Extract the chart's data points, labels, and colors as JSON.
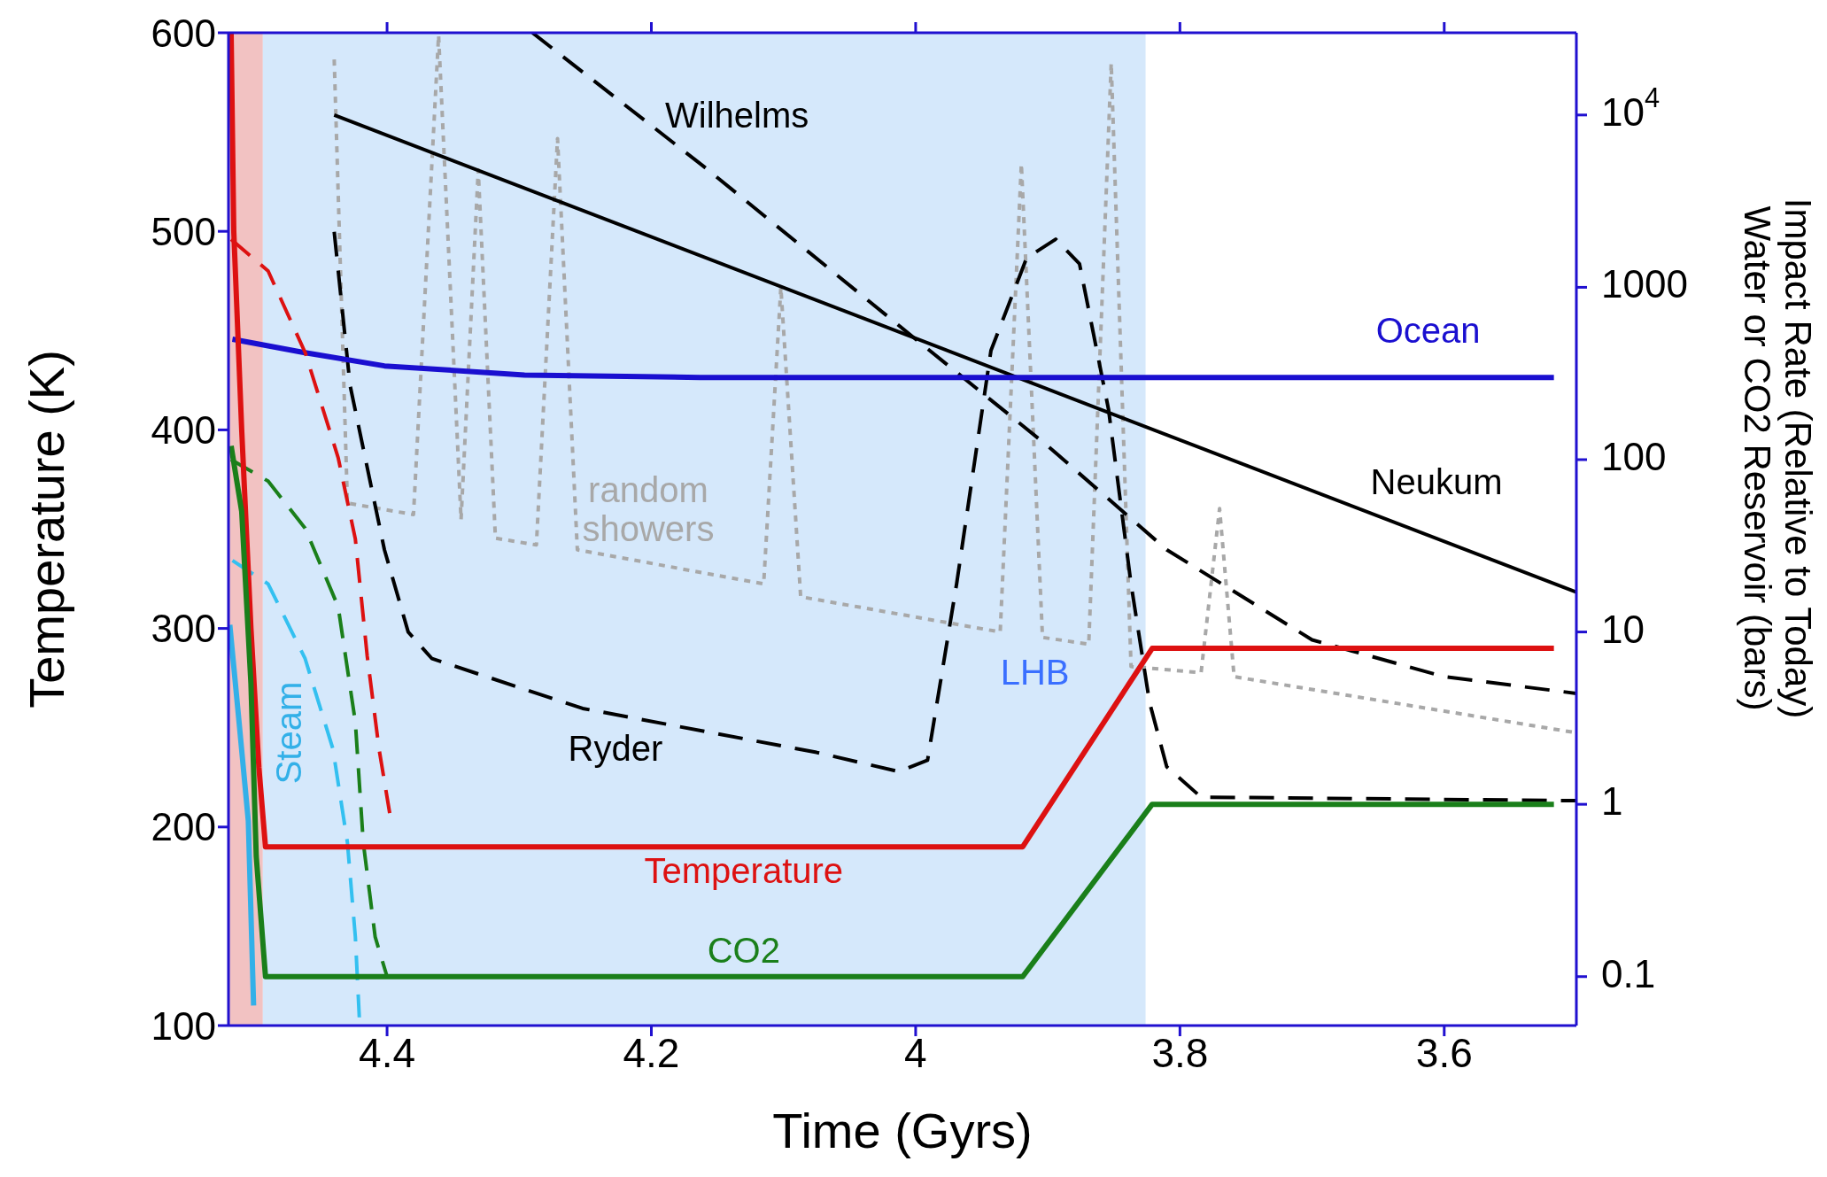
{
  "chart_data": {
    "type": "line",
    "xlabel": "Time (Gyrs)",
    "ylabel": "Temperature (K)",
    "y2label": "Impact Rate (Relative to Today)\nWater or CO2 Reservoir (bars)",
    "xlim": [
      4.52,
      3.5
    ],
    "xticks": [
      4.4,
      4.2,
      4,
      3.8,
      3.6
    ],
    "ylim": [
      100,
      600
    ],
    "yticks": [
      100,
      200,
      300,
      400,
      500,
      600
    ],
    "y2lim": [
      0.052,
      30000
    ],
    "y2ticks": [
      0.1,
      1,
      10,
      100,
      1000,
      {
        "value": 10000,
        "label": "10$^{4}$"
      }
    ],
    "log": "y2",
    "bands": [
      {
        "axis": "x",
        "from": 4.52,
        "to": 4.494,
        "label": null,
        "color": "#f2c2c2"
      },
      {
        "axis": "x",
        "from": 4.494,
        "to": 3.826,
        "label": "LHB",
        "color": "#d5e8fb"
      }
    ],
    "series": [
      {
        "name": "random showers",
        "axis": "y2",
        "color": "#a8a8a8",
        "line_style": "dotted",
        "x": [
          4.44,
          4.43,
          4.38,
          4.361,
          4.344,
          4.331,
          4.318,
          4.287,
          4.271,
          4.256,
          4.115,
          4.102,
          4.087,
          3.936,
          3.92,
          3.904,
          3.869,
          3.852,
          3.837,
          3.784,
          3.77,
          3.759,
          3.5
        ],
        "values": [
          21000,
          56,
          48,
          29000,
          45,
          4800,
          35,
          32,
          7300,
          30,
          19,
          1000,
          16,
          10,
          5200,
          9.3,
          8.5,
          20000,
          6.3,
          5.8,
          52,
          5.5,
          2.6
        ]
      },
      {
        "name": "Neukum",
        "axis": "y2",
        "color": "#000000",
        "line_style": "solid",
        "x": [
          4.44,
          3.5
        ],
        "values": [
          10000,
          17
        ]
      },
      {
        "name": "Wilhelms",
        "axis": "y2",
        "color": "#000000",
        "line_style": "dashed",
        "x": [
          4.29,
          4.16,
          4.0,
          3.9,
          3.81,
          3.7,
          3.6,
          3.5
        ],
        "values": [
          30000,
          5000,
          500,
          120,
          30,
          9,
          5.5,
          4.4
        ]
      },
      {
        "name": "Ryder",
        "axis": "y2",
        "color": "#000000",
        "line_style": "dashed",
        "x": [
          4.44,
          4.428,
          4.402,
          4.384,
          4.366,
          4.252,
          4.075,
          4.013,
          3.991,
          3.969,
          3.943,
          3.916,
          3.894,
          3.876,
          3.854,
          3.837,
          3.823,
          3.81,
          3.784,
          3.5
        ],
        "values": [
          2100,
          270,
          30,
          10,
          7,
          3.6,
          2,
          1.55,
          1.8,
          19,
          430,
          1480,
          1900,
          1370,
          195,
          19,
          3.9,
          1.65,
          1.1,
          1.05
        ]
      },
      {
        "name": "Ocean",
        "axis": "y2",
        "color": "#1a0fd0",
        "line_style": "solid",
        "x": [
          4.517,
          4.464,
          4.402,
          4.296,
          4.163,
          3.517
        ],
        "values": [
          500,
          420,
          350,
          310,
          300,
          300
        ]
      },
      {
        "color": "#dd1111",
        "line_style": "dashed",
        "x": [
          4.518,
          4.49,
          4.462,
          4.437,
          4.424,
          4.415,
          4.406,
          4.398
        ],
        "values": [
          496,
          480,
          439,
          386,
          345,
          286,
          239,
          207
        ]
      },
      {
        "axis": "y2",
        "color": "#1a7f1a",
        "line_style": "dashed",
        "x": [
          4.518,
          4.49,
          4.462,
          4.437,
          4.424,
          4.418,
          4.409,
          4.4
        ],
        "values": [
          100,
          75,
          40,
          14,
          3,
          0.6,
          0.17,
          0.1
        ]
      },
      {
        "axis": "y2",
        "color": "#33c0f0",
        "line_style": "dashed",
        "x": [
          4.517,
          4.49,
          4.462,
          4.441,
          4.43,
          4.424,
          4.421
        ],
        "values": [
          26,
          19,
          7,
          2.1,
          0.6,
          0.17,
          0.058
        ]
      },
      {
        "name": "Steam",
        "axis": "y2",
        "color": "#33b0e8",
        "line_style": "solid",
        "x": [
          4.519,
          4.512,
          4.505,
          4.501
        ],
        "values": [
          11,
          3,
          0.8,
          0.068
        ]
      },
      {
        "name": "Temperature",
        "color": "#dd1111",
        "line_style": "solid",
        "x": [
          4.518,
          4.516,
          4.51,
          4.503,
          4.497,
          4.492,
          3.919,
          3.821,
          3.517
        ],
        "values": [
          600,
          500,
          400,
          300,
          230,
          190,
          190,
          290,
          290
        ]
      },
      {
        "name": "CO2",
        "axis": "y2",
        "color": "#1a7f1a",
        "line_style": "solid",
        "x": [
          4.518,
          4.51,
          4.503,
          4.499,
          4.492,
          3.919,
          3.821,
          3.517
        ],
        "values": [
          120,
          50,
          5,
          0.5,
          0.1,
          0.1,
          1,
          1
        ]
      }
    ]
  }
}
